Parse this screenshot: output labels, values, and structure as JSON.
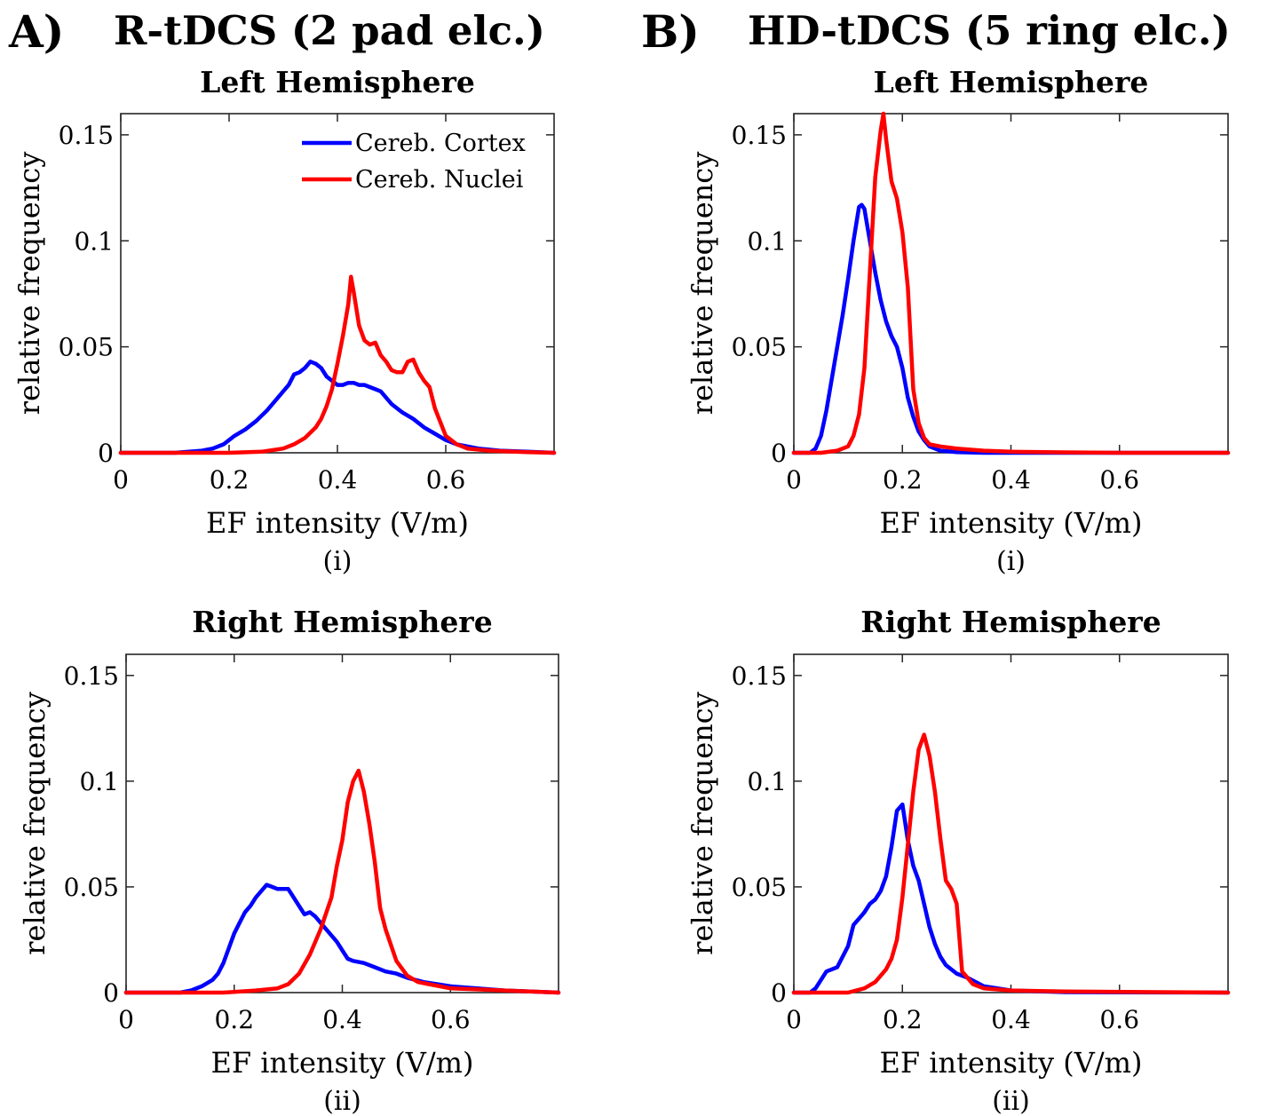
{
  "panels": {
    "A": {
      "letter": "A)",
      "title": "R-tDCS (2 pad elc.)"
    },
    "B": {
      "letter": "B)",
      "title": "HD-tDCS (5 ring elc.)"
    }
  },
  "colors": {
    "cortex": "#0000ff",
    "nuclei": "#ff0000"
  },
  "chart_data": [
    {
      "id": "A-i",
      "type": "line",
      "title": "Left Hemisphere",
      "xlabel": "EF intensity (V/m)",
      "ylabel": "relative frequency",
      "sublabel": "(i)",
      "xlim": [
        0,
        0.8
      ],
      "ylim": [
        0,
        0.16
      ],
      "xticks": [
        0,
        0.2,
        0.4,
        0.6
      ],
      "xtick_labels": [
        "0",
        "0.2",
        "0.4",
        "0.6"
      ],
      "yticks": [
        0,
        0.05,
        0.1,
        0.15
      ],
      "ytick_labels": [
        "0",
        "0.05",
        "0.1",
        "0.15"
      ],
      "grid": false,
      "legend": {
        "placement": "top-right",
        "entries": [
          "Cereb. Cortex",
          "Cereb. Nuclei"
        ]
      },
      "series": [
        {
          "name": "Cereb. Cortex",
          "color": "#0000ff",
          "x": [
            0,
            0.1,
            0.15,
            0.17,
            0.19,
            0.21,
            0.23,
            0.25,
            0.27,
            0.29,
            0.31,
            0.32,
            0.33,
            0.34,
            0.35,
            0.36,
            0.37,
            0.38,
            0.39,
            0.4,
            0.41,
            0.42,
            0.43,
            0.44,
            0.45,
            0.46,
            0.47,
            0.48,
            0.5,
            0.52,
            0.54,
            0.56,
            0.58,
            0.6,
            0.62,
            0.64,
            0.66,
            0.7,
            0.75,
            0.8
          ],
          "y": [
            0,
            0,
            0.001,
            0.002,
            0.004,
            0.008,
            0.011,
            0.015,
            0.02,
            0.026,
            0.032,
            0.037,
            0.038,
            0.04,
            0.043,
            0.042,
            0.04,
            0.036,
            0.034,
            0.032,
            0.032,
            0.033,
            0.033,
            0.032,
            0.032,
            0.031,
            0.03,
            0.029,
            0.023,
            0.019,
            0.016,
            0.012,
            0.009,
            0.006,
            0.004,
            0.003,
            0.002,
            0.001,
            0.0005,
            0
          ]
        },
        {
          "name": "Cereb. Nuclei",
          "color": "#ff0000",
          "x": [
            0,
            0.2,
            0.26,
            0.3,
            0.32,
            0.34,
            0.36,
            0.37,
            0.38,
            0.39,
            0.4,
            0.41,
            0.42,
            0.425,
            0.43,
            0.44,
            0.45,
            0.46,
            0.47,
            0.48,
            0.49,
            0.5,
            0.51,
            0.52,
            0.53,
            0.54,
            0.55,
            0.56,
            0.57,
            0.58,
            0.6,
            0.62,
            0.64,
            0.68,
            0.75,
            0.8
          ],
          "y": [
            0,
            0,
            0.0005,
            0.002,
            0.004,
            0.007,
            0.012,
            0.016,
            0.022,
            0.03,
            0.042,
            0.055,
            0.07,
            0.083,
            0.076,
            0.06,
            0.053,
            0.051,
            0.052,
            0.046,
            0.043,
            0.039,
            0.038,
            0.038,
            0.043,
            0.044,
            0.038,
            0.034,
            0.031,
            0.021,
            0.008,
            0.004,
            0.002,
            0.001,
            0.0003,
            0
          ]
        }
      ]
    },
    {
      "id": "B-i",
      "type": "line",
      "title": "Left Hemisphere",
      "xlabel": "EF intensity (V/m)",
      "ylabel": "relative frequency",
      "sublabel": "(i)",
      "xlim": [
        0,
        0.8
      ],
      "ylim": [
        0,
        0.16
      ],
      "xticks": [
        0,
        0.2,
        0.4,
        0.6
      ],
      "xtick_labels": [
        "0",
        "0.2",
        "0.4",
        "0.6"
      ],
      "yticks": [
        0,
        0.05,
        0.1,
        0.15
      ],
      "ytick_labels": [
        "0",
        "0.05",
        "0.1",
        "0.15"
      ],
      "grid": false,
      "series": [
        {
          "name": "Cereb. Cortex",
          "color": "#0000ff",
          "x": [
            0,
            0.03,
            0.04,
            0.05,
            0.06,
            0.07,
            0.08,
            0.09,
            0.1,
            0.11,
            0.12,
            0.125,
            0.13,
            0.14,
            0.15,
            0.16,
            0.17,
            0.18,
            0.19,
            0.2,
            0.21,
            0.22,
            0.23,
            0.24,
            0.25,
            0.27,
            0.3,
            0.35,
            0.8
          ],
          "y": [
            0,
            0,
            0.002,
            0.008,
            0.02,
            0.035,
            0.05,
            0.065,
            0.082,
            0.1,
            0.116,
            0.117,
            0.115,
            0.1,
            0.085,
            0.072,
            0.062,
            0.055,
            0.05,
            0.04,
            0.026,
            0.017,
            0.01,
            0.006,
            0.003,
            0.001,
            0.0003,
            0,
            0
          ]
        },
        {
          "name": "Cereb. Nuclei",
          "color": "#ff0000",
          "x": [
            0,
            0.05,
            0.08,
            0.1,
            0.11,
            0.12,
            0.13,
            0.14,
            0.15,
            0.16,
            0.165,
            0.17,
            0.18,
            0.19,
            0.2,
            0.21,
            0.22,
            0.23,
            0.24,
            0.25,
            0.27,
            0.3,
            0.35,
            0.4,
            0.5,
            0.6,
            0.8
          ],
          "y": [
            0,
            0,
            0.001,
            0.003,
            0.008,
            0.018,
            0.04,
            0.085,
            0.13,
            0.152,
            0.16,
            0.148,
            0.128,
            0.12,
            0.104,
            0.078,
            0.03,
            0.014,
            0.007,
            0.004,
            0.003,
            0.002,
            0.001,
            0.0005,
            0.0002,
            0,
            0
          ]
        }
      ]
    },
    {
      "id": "A-ii",
      "type": "line",
      "title": "Right Hemisphere",
      "xlabel": "EF intensity (V/m)",
      "ylabel": "relative frequency",
      "sublabel": "(ii)",
      "xlim": [
        0,
        0.8
      ],
      "ylim": [
        0,
        0.16
      ],
      "xticks": [
        0,
        0.2,
        0.4,
        0.6
      ],
      "xtick_labels": [
        "0",
        "0.2",
        "0.4",
        "0.6"
      ],
      "yticks": [
        0,
        0.05,
        0.1,
        0.15
      ],
      "ytick_labels": [
        "0",
        "0.05",
        "0.1",
        "0.15"
      ],
      "grid": false,
      "series": [
        {
          "name": "Cereb. Cortex",
          "color": "#0000ff",
          "x": [
            0,
            0.1,
            0.12,
            0.14,
            0.16,
            0.17,
            0.18,
            0.19,
            0.2,
            0.21,
            0.22,
            0.23,
            0.24,
            0.25,
            0.26,
            0.27,
            0.28,
            0.3,
            0.31,
            0.32,
            0.33,
            0.34,
            0.35,
            0.36,
            0.37,
            0.38,
            0.39,
            0.4,
            0.41,
            0.42,
            0.44,
            0.46,
            0.48,
            0.5,
            0.52,
            0.55,
            0.6,
            0.7,
            0.8
          ],
          "y": [
            0,
            0,
            0.001,
            0.003,
            0.006,
            0.009,
            0.014,
            0.021,
            0.028,
            0.033,
            0.038,
            0.041,
            0.045,
            0.048,
            0.051,
            0.05,
            0.049,
            0.049,
            0.045,
            0.041,
            0.037,
            0.038,
            0.036,
            0.033,
            0.03,
            0.027,
            0.024,
            0.02,
            0.016,
            0.015,
            0.014,
            0.012,
            0.01,
            0.009,
            0.007,
            0.005,
            0.003,
            0.001,
            0
          ]
        },
        {
          "name": "Cereb. Nuclei",
          "color": "#ff0000",
          "x": [
            0,
            0.18,
            0.24,
            0.28,
            0.3,
            0.32,
            0.34,
            0.36,
            0.38,
            0.39,
            0.4,
            0.41,
            0.42,
            0.43,
            0.44,
            0.45,
            0.46,
            0.47,
            0.48,
            0.5,
            0.52,
            0.54,
            0.56,
            0.6,
            0.65,
            0.7,
            0.8
          ],
          "y": [
            0,
            0,
            0.001,
            0.002,
            0.004,
            0.009,
            0.018,
            0.03,
            0.045,
            0.06,
            0.072,
            0.09,
            0.1,
            0.105,
            0.095,
            0.08,
            0.062,
            0.04,
            0.03,
            0.015,
            0.008,
            0.005,
            0.004,
            0.002,
            0.0015,
            0.001,
            0
          ]
        }
      ]
    },
    {
      "id": "B-ii",
      "type": "line",
      "title": "Right Hemisphere",
      "xlabel": "EF intensity (V/m)",
      "ylabel": "relative frequency",
      "sublabel": "(ii)",
      "xlim": [
        0,
        0.8
      ],
      "ylim": [
        0,
        0.16
      ],
      "xticks": [
        0,
        0.2,
        0.4,
        0.6
      ],
      "xtick_labels": [
        "0",
        "0.2",
        "0.4",
        "0.6"
      ],
      "yticks": [
        0,
        0.05,
        0.1,
        0.15
      ],
      "ytick_labels": [
        "0",
        "0.05",
        "0.1",
        "0.15"
      ],
      "grid": false,
      "series": [
        {
          "name": "Cereb. Cortex",
          "color": "#0000ff",
          "x": [
            0,
            0.03,
            0.04,
            0.05,
            0.06,
            0.07,
            0.08,
            0.09,
            0.1,
            0.11,
            0.12,
            0.13,
            0.14,
            0.15,
            0.16,
            0.17,
            0.18,
            0.19,
            0.2,
            0.21,
            0.22,
            0.23,
            0.24,
            0.25,
            0.26,
            0.27,
            0.28,
            0.3,
            0.32,
            0.35,
            0.4,
            0.5,
            0.8
          ],
          "y": [
            0,
            0,
            0.002,
            0.006,
            0.01,
            0.011,
            0.012,
            0.017,
            0.022,
            0.032,
            0.035,
            0.038,
            0.042,
            0.044,
            0.048,
            0.055,
            0.069,
            0.086,
            0.089,
            0.072,
            0.06,
            0.053,
            0.042,
            0.031,
            0.023,
            0.017,
            0.013,
            0.009,
            0.007,
            0.003,
            0.001,
            0.0002,
            0
          ]
        },
        {
          "name": "Cereb. Nuclei",
          "color": "#ff0000",
          "x": [
            0,
            0.1,
            0.13,
            0.15,
            0.17,
            0.18,
            0.19,
            0.2,
            0.21,
            0.22,
            0.23,
            0.24,
            0.25,
            0.26,
            0.27,
            0.28,
            0.29,
            0.3,
            0.31,
            0.33,
            0.35,
            0.4,
            0.5,
            0.8
          ],
          "y": [
            0,
            0,
            0.002,
            0.005,
            0.011,
            0.016,
            0.025,
            0.045,
            0.07,
            0.095,
            0.115,
            0.122,
            0.112,
            0.095,
            0.073,
            0.053,
            0.049,
            0.042,
            0.01,
            0.004,
            0.002,
            0.001,
            0.0005,
            0
          ]
        }
      ]
    }
  ]
}
